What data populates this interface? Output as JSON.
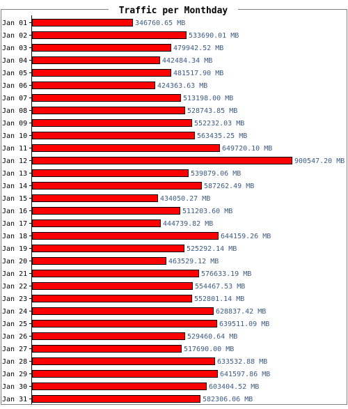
{
  "chart_data": {
    "type": "bar",
    "orientation": "horizontal",
    "title": "Traffic per Monthday",
    "unit": "MB",
    "categories": [
      "Jan 01",
      "Jan 02",
      "Jan 03",
      "Jan 04",
      "Jan 05",
      "Jan 06",
      "Jan 07",
      "Jan 08",
      "Jan 09",
      "Jan 10",
      "Jan 11",
      "Jan 12",
      "Jan 13",
      "Jan 14",
      "Jan 15",
      "Jan 16",
      "Jan 17",
      "Jan 18",
      "Jan 19",
      "Jan 20",
      "Jan 21",
      "Jan 22",
      "Jan 23",
      "Jan 24",
      "Jan 25",
      "Jan 26",
      "Jan 27",
      "Jan 28",
      "Jan 29",
      "Jan 30",
      "Jan 31"
    ],
    "values": [
      346760.65,
      533690.01,
      479942.52,
      442484.34,
      481517.9,
      424363.63,
      513198.0,
      528743.85,
      552232.03,
      563435.25,
      649720.1,
      900547.2,
      539879.06,
      587262.49,
      434050.27,
      511203.6,
      444739.82,
      644159.26,
      525292.14,
      463529.12,
      576633.19,
      554467.53,
      552801.14,
      628837.42,
      639511.09,
      529460.64,
      517690.0,
      633532.88,
      641597.86,
      603404.52,
      582306.06
    ],
    "value_labels": [
      "346760.65 MB",
      "533690.01 MB",
      "479942.52 MB",
      "442484.34 MB",
      "481517.90 MB",
      "424363.63 MB",
      "513198.00 MB",
      "528743.85 MB",
      "552232.03 MB",
      "563435.25 MB",
      "649720.10 MB",
      "900547.20 MB",
      "539879.06 MB",
      "587262.49 MB",
      "434050.27 MB",
      "511203.60 MB",
      "444739.82 MB",
      "644159.26 MB",
      "525292.14 MB",
      "463529.12 MB",
      "576633.19 MB",
      "554467.53 MB",
      "552801.14 MB",
      "628837.42 MB",
      "639511.09 MB",
      "529460.64 MB",
      "517690.00 MB",
      "633532.88 MB",
      "641597.86 MB",
      "603404.52 MB",
      "582306.06 MB"
    ],
    "grid": false,
    "legend": "none"
  },
  "colors": {
    "bar_fill": "#ff0000",
    "bar_stroke": "#000000",
    "value_label": "#3a5a8a",
    "category_label": "#000000",
    "frame": "#808080",
    "axis": "#000000",
    "title": "#000000"
  }
}
